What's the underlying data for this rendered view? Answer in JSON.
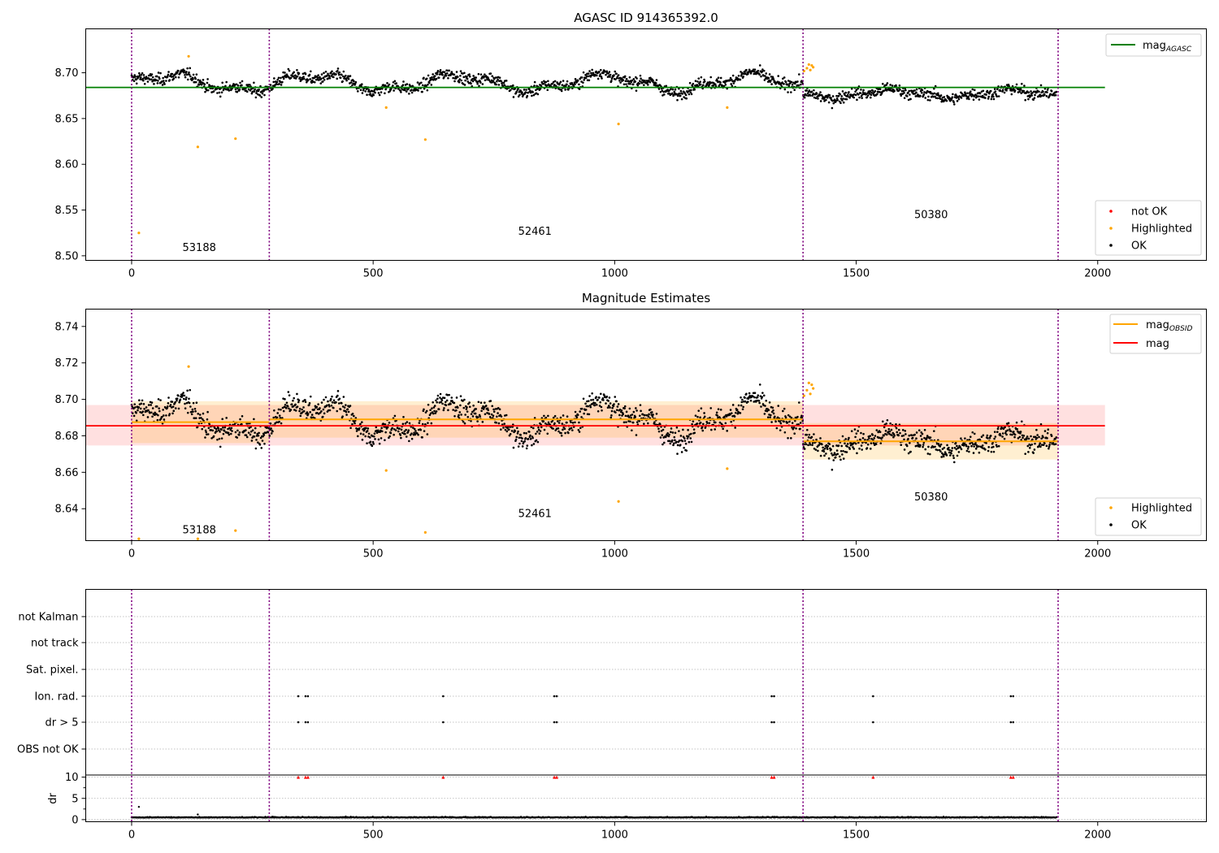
{
  "chart_data": [
    {
      "type": "scatter",
      "title": "AGASC ID 914365392.0",
      "xlim": [
        -95,
        2225
      ],
      "ylim": [
        8.495,
        8.748
      ],
      "xticks": [
        0,
        500,
        1000,
        1500,
        2000
      ],
      "yticks": [
        8.5,
        8.55,
        8.6,
        8.65,
        8.7
      ],
      "ytick_labels": [
        "8.50",
        "8.55",
        "8.60",
        "8.65",
        "8.70"
      ],
      "mag_agasc": 8.684,
      "mag_agasc_x_range": [
        -95,
        2015
      ],
      "obsid_boundaries": [
        0,
        285,
        1390,
        1918
      ],
      "obsid_labels": [
        {
          "text": "53188",
          "x": 140,
          "y": 8.505
        },
        {
          "text": "52461",
          "x": 835,
          "y": 8.523
        },
        {
          "text": "50380",
          "x": 1655,
          "y": 8.541
        }
      ],
      "series": [
        {
          "name": "not OK",
          "color": "#ff0000",
          "points": []
        },
        {
          "name": "Highlighted",
          "color": "#ffa500",
          "points": [
            [
              15,
              8.525
            ],
            [
              118,
              8.718
            ],
            [
              137,
              8.619
            ],
            [
              215,
              8.628
            ],
            [
              527,
              8.662
            ],
            [
              608,
              8.627
            ],
            [
              1008,
              8.644
            ],
            [
              1233,
              8.662
            ],
            [
              1392,
              8.702
            ],
            [
              1398,
              8.705
            ],
            [
              1402,
              8.709
            ],
            [
              1405,
              8.703
            ],
            [
              1408,
              8.708
            ],
            [
              1411,
              8.706
            ]
          ]
        },
        {
          "name": "OK",
          "color": "#000000"
        }
      ],
      "legend": [
        {
          "label": "mag",
          "sub": "AGASC",
          "color": "#008000",
          "kind": "line"
        }
      ],
      "legend2": [
        {
          "label": "not OK",
          "color": "#ff0000",
          "kind": "dot"
        },
        {
          "label": "Highlighted",
          "color": "#ffa500",
          "kind": "dot"
        },
        {
          "label": "OK",
          "color": "#000000",
          "kind": "dot"
        }
      ],
      "legend_placement": [
        "upper-right",
        "lower-right"
      ]
    },
    {
      "type": "scatter",
      "title": "Magnitude Estimates",
      "xlim": [
        -95,
        2225
      ],
      "ylim": [
        8.6225,
        8.7495
      ],
      "xticks": [
        0,
        500,
        1000,
        1500,
        2000
      ],
      "yticks": [
        8.64,
        8.66,
        8.68,
        8.7,
        8.72,
        8.74
      ],
      "ytick_labels": [
        "8.64",
        "8.66",
        "8.68",
        "8.70",
        "8.72",
        "8.74"
      ],
      "mag": 8.6855,
      "mag_band": [
        8.6747,
        8.6969
      ],
      "mag_x_range": [
        -95,
        2015
      ],
      "obsid_mag": [
        {
          "x": [
            0,
            285
          ],
          "mag": 8.6875,
          "band": [
            8.676,
            8.699
          ]
        },
        {
          "x": [
            285,
            1390
          ],
          "mag": 8.689,
          "band": [
            8.679,
            8.699
          ]
        },
        {
          "x": [
            1390,
            1918
          ],
          "mag": 8.677,
          "band": [
            8.667,
            8.687
          ]
        }
      ],
      "obsid_boundaries": [
        0,
        285,
        1390,
        1918
      ],
      "obsid_labels": [
        {
          "text": "53188",
          "x": 140,
          "y": 8.6265
        },
        {
          "text": "52461",
          "x": 835,
          "y": 8.6355
        },
        {
          "text": "50380",
          "x": 1655,
          "y": 8.6445
        }
      ],
      "series": [
        {
          "name": "Highlighted",
          "color": "#ffa500",
          "points": [
            [
              15,
              8.6235
            ],
            [
              118,
              8.718
            ],
            [
              137,
              8.6235
            ],
            [
              215,
              8.628
            ],
            [
              527,
              8.661
            ],
            [
              608,
              8.627
            ],
            [
              1008,
              8.644
            ],
            [
              1233,
              8.662
            ],
            [
              1392,
              8.702
            ],
            [
              1398,
              8.705
            ],
            [
              1402,
              8.709
            ],
            [
              1405,
              8.703
            ],
            [
              1408,
              8.708
            ],
            [
              1411,
              8.706
            ]
          ]
        },
        {
          "name": "OK",
          "color": "#000000"
        }
      ],
      "legend": [
        {
          "label": "mag",
          "sub": "OBSID",
          "color": "#ffa500",
          "kind": "line"
        },
        {
          "label": "mag",
          "sub": "",
          "color": "#ff0000",
          "kind": "line"
        }
      ],
      "legend2": [
        {
          "label": "Highlighted",
          "color": "#ffa500",
          "kind": "dot"
        },
        {
          "label": "OK",
          "color": "#000000",
          "kind": "dot"
        }
      ],
      "legend_placement": [
        "upper-right",
        "lower-right"
      ]
    },
    {
      "type": "scatter",
      "xlim": [
        -95,
        2225
      ],
      "xticks": [
        0,
        500,
        1000,
        1500,
        2000
      ],
      "flag_rows": [
        "not Kalman",
        "not track",
        "Sat. pixel.",
        "Ion. rad.",
        "dr > 5",
        "OBS not OK"
      ],
      "flag_events": {
        "Ion. rad.": [
          345,
          360,
          365,
          645,
          875,
          880,
          1325,
          1330,
          1535,
          1820,
          1825
        ],
        "dr > 5": [
          345,
          360,
          365,
          645,
          875,
          880,
          1325,
          1330,
          1535,
          1820,
          1825
        ]
      },
      "obsid_boundaries": [
        0,
        285,
        1390,
        1918
      ],
      "dr": {
        "ylabel": "dr",
        "ylim": [
          -0.5,
          10.5
        ],
        "yticks": [
          0,
          5,
          10
        ],
        "ytick_labels": [
          "0",
          "5",
          "10"
        ],
        "outliers_at_10": [
          345,
          360,
          365,
          645,
          875,
          880,
          1325,
          1330,
          1535,
          1820,
          1825
        ],
        "extra_points": [
          [
            15,
            3.0
          ],
          [
            137,
            1.2
          ]
        ]
      }
    }
  ]
}
